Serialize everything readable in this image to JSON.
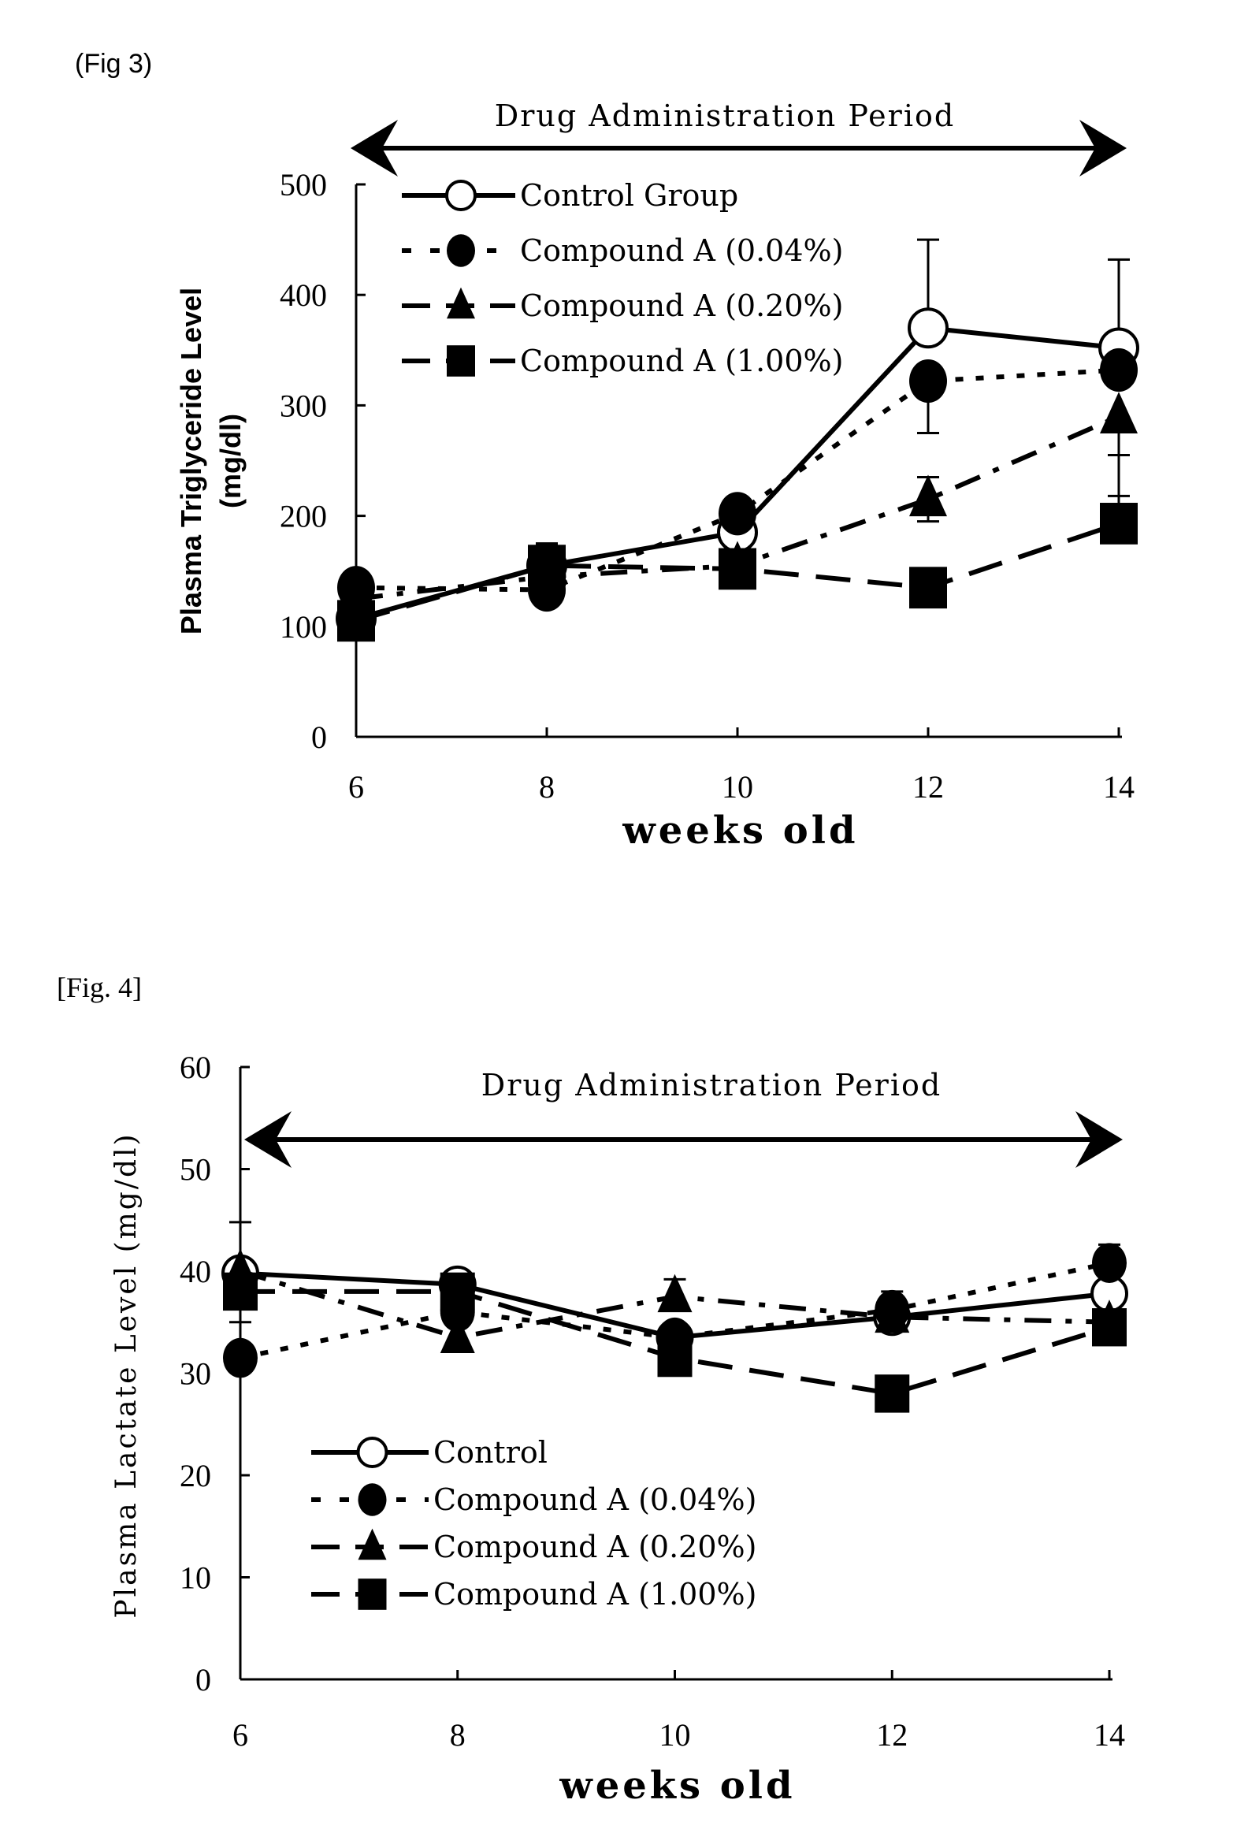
{
  "chart_data": [
    {
      "type": "line",
      "figure_label": "(Fig 3)",
      "annotation": "Drug Administration Period",
      "xlabel": "weeks old",
      "ylabel": "Plasma Triglyceride Level",
      "ylabel_unit": "(mg/dl)",
      "x": [
        6,
        8,
        10,
        12,
        14
      ],
      "x_ticks": [
        "6",
        "8",
        "10",
        "12",
        "14"
      ],
      "y_ticks": [
        "0",
        "100",
        "200",
        "300",
        "400",
        "500"
      ],
      "ylim": [
        0,
        500
      ],
      "xlim": [
        6,
        14
      ],
      "legend_position": "top-left",
      "grid": false,
      "series": [
        {
          "name": "Control Group",
          "marker": "open-circle",
          "line": "solid",
          "values": [
            107,
            155,
            185,
            370,
            352
          ],
          "error_up": [
            null,
            20,
            null,
            80,
            80
          ],
          "error_down": [
            null,
            null,
            null,
            null,
            null
          ]
        },
        {
          "name": "Compound A  (0.04%)",
          "marker": "filled-circle",
          "line": "dotted",
          "values": [
            135,
            133,
            202,
            322,
            332
          ],
          "error_up": [
            null,
            null,
            15,
            null,
            null
          ],
          "error_down": [
            null,
            null,
            null,
            47,
            null
          ]
        },
        {
          "name": "Compound A  (0.20%)",
          "marker": "filled-triangle",
          "line": "dash-dot",
          "values": [
            125,
            145,
            155,
            215,
            290
          ],
          "error_up": [
            25,
            null,
            null,
            20,
            null
          ],
          "error_down": [
            null,
            null,
            null,
            20,
            72
          ]
        },
        {
          "name": "Compound A  (1.00%)",
          "marker": "filled-square",
          "line": "long-dash",
          "values": [
            105,
            155,
            152,
            135,
            193
          ],
          "error_up": [
            null,
            18,
            null,
            null,
            62
          ],
          "error_down": [
            null,
            null,
            null,
            null,
            null
          ]
        }
      ]
    },
    {
      "type": "line",
      "figure_label": "[Fig. 4]",
      "annotation": "Drug Administration Period",
      "xlabel": "weeks old",
      "ylabel": "Plasma Lactate Level (mg/dl)",
      "x": [
        6,
        8,
        10,
        12,
        14
      ],
      "x_ticks": [
        "6",
        "8",
        "10",
        "12",
        "14"
      ],
      "y_ticks": [
        "0",
        "10",
        "20",
        "30",
        "40",
        "50",
        "60"
      ],
      "ylim": [
        0,
        60
      ],
      "xlim": [
        6,
        14
      ],
      "legend_position": "bottom-left",
      "grid": false,
      "series": [
        {
          "name": "Control",
          "marker": "open-circle",
          "line": "solid",
          "values": [
            39.8,
            38.7,
            33.5,
            35.5,
            37.8
          ],
          "error_up": [
            5,
            null,
            null,
            null,
            null
          ],
          "error_down": [
            null,
            null,
            null,
            null,
            null
          ]
        },
        {
          "name": "Compound A  (0.04%)",
          "marker": "filled-circle",
          "line": "dotted",
          "values": [
            31.5,
            36,
            33.5,
            36.2,
            40.8
          ],
          "error_up": [
            null,
            null,
            null,
            1.8,
            1.8
          ],
          "error_down": [
            null,
            null,
            null,
            null,
            null
          ]
        },
        {
          "name": "Compound A  (0.20%)",
          "marker": "filled-triangle",
          "line": "dash-dot",
          "values": [
            40,
            33.5,
            37.5,
            35.5,
            35
          ],
          "error_up": [
            null,
            null,
            1.7,
            null,
            null
          ],
          "error_down": [
            null,
            null,
            null,
            null,
            null
          ]
        },
        {
          "name": "Compound A  (1.00%)",
          "marker": "filled-square",
          "line": "long-dash",
          "values": [
            38,
            38,
            31.5,
            28,
            34.5
          ],
          "error_up": [
            null,
            null,
            null,
            null,
            null
          ],
          "error_down": [
            3,
            null,
            null,
            null,
            null
          ]
        }
      ]
    }
  ]
}
